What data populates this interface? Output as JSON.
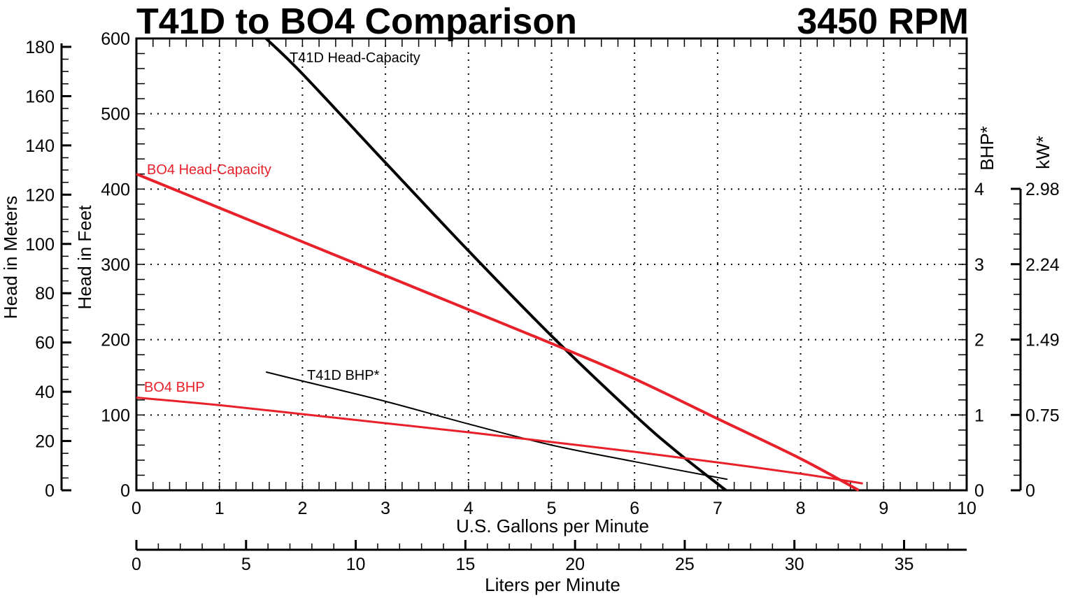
{
  "header": {
    "title": "T41D to BO4 Comparison",
    "rpm": "3450 RPM"
  },
  "axes": {
    "y_meters_label": "Head in Meters",
    "y_feet_label": "Head in Feet",
    "y_bhp_label": "BHP*",
    "y_kw_label": "kW*",
    "x_gpm_label": "U.S. Gallons per Minute",
    "x_lpm_label": "Liters per Minute",
    "y_meters_ticks": [
      "0",
      "20",
      "40",
      "60",
      "80",
      "100",
      "120",
      "140",
      "160",
      "180"
    ],
    "y_feet_ticks": [
      "0",
      "100",
      "200",
      "300",
      "400",
      "500",
      "600"
    ],
    "y_bhp_ticks": [
      "0",
      "1",
      "2",
      "3",
      "4"
    ],
    "y_kw_ticks": [
      "0",
      "0.75",
      "1.49",
      "2.24",
      "2.98"
    ],
    "x_gpm_ticks": [
      "0",
      "1",
      "2",
      "3",
      "4",
      "5",
      "6",
      "7",
      "8",
      "9",
      "10"
    ],
    "x_lpm_ticks": [
      "0",
      "5",
      "10",
      "15",
      "20",
      "25",
      "30",
      "35"
    ]
  },
  "labels": {
    "t41d_head": "T41D Head-Capacity",
    "bo4_head": "BO4 Head-Capacity",
    "t41d_bhp": "T41D BHP*",
    "bo4_bhp": "BO4 BHP"
  },
  "colors": {
    "t41d": "#000000",
    "bo4": "#e8202a",
    "grid": "#000000"
  },
  "chart_data": {
    "type": "line",
    "title": "T41D to BO4 Comparison",
    "subtitle": "3450 RPM",
    "xlabel": "U.S. Gallons per Minute",
    "xlabel_secondary": "Liters per Minute",
    "ylabel": "Head in Feet",
    "ylabel_secondary": "Head in Meters",
    "y2label": "BHP*",
    "y2label_secondary": "kW*",
    "xlim": [
      0,
      10
    ],
    "ylim": [
      0,
      600
    ],
    "y2lim": [
      0,
      6
    ],
    "grid": true,
    "series": [
      {
        "name": "T41D Head-Capacity",
        "axis": "feet",
        "color": "#000000",
        "x": [
          1.56,
          2,
          3,
          4,
          5,
          6,
          6.5,
          7.1
        ],
        "y": [
          600,
          553,
          435,
          318,
          205,
          100,
          52,
          0
        ]
      },
      {
        "name": "BO4 Head-Capacity",
        "axis": "feet",
        "color": "#e8202a",
        "x": [
          0,
          1,
          2,
          3,
          4,
          5,
          6,
          7,
          8,
          8.7
        ],
        "y": [
          420,
          375,
          330,
          285,
          240,
          195,
          148,
          95,
          42,
          0
        ]
      },
      {
        "name": "T41D BHP*",
        "axis": "bhp",
        "color": "#000000",
        "x": [
          1.56,
          2,
          3,
          4,
          5,
          6,
          7,
          7.1
        ],
        "y": [
          1.57,
          1.45,
          1.18,
          0.88,
          0.6,
          0.38,
          0.17,
          0.15
        ]
      },
      {
        "name": "BO4 BHP",
        "axis": "bhp",
        "color": "#e8202a",
        "x": [
          0,
          1,
          2,
          3,
          4,
          5,
          6,
          7,
          8,
          8.75
        ],
        "y": [
          1.23,
          1.13,
          1.01,
          0.89,
          0.77,
          0.64,
          0.51,
          0.37,
          0.22,
          0.09
        ]
      }
    ]
  }
}
